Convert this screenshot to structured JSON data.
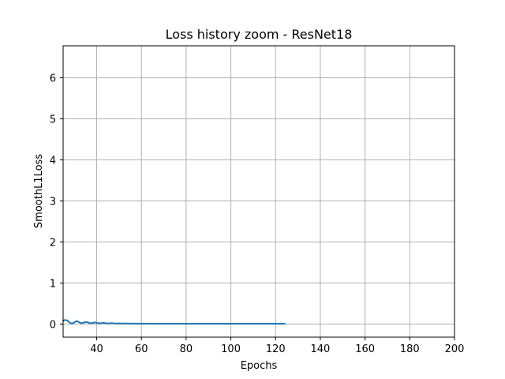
{
  "chart_data": {
    "type": "line",
    "title": "Loss history zoom - ResNet18",
    "xlabel": "Epochs",
    "ylabel": "SmoothL1Loss",
    "xlim": [
      25,
      200
    ],
    "ylim": [
      -0.32,
      6.78
    ],
    "xticks": [
      40,
      60,
      80,
      100,
      120,
      140,
      160,
      180,
      200
    ],
    "yticks": [
      0,
      1,
      2,
      3,
      4,
      5,
      6
    ],
    "grid": true,
    "legend": "none",
    "color": "#1f77b4",
    "series": [
      {
        "x": [
          25,
          26,
          27,
          28,
          29,
          30,
          31,
          32,
          33,
          34,
          35,
          36,
          37,
          38,
          39,
          40,
          41,
          42,
          43,
          44,
          45,
          46,
          47,
          48,
          49,
          50,
          52,
          54,
          56,
          58,
          60,
          65,
          70,
          75,
          80,
          90,
          100,
          110,
          120,
          124
        ],
        "y": [
          0.08,
          0.1,
          0.08,
          0.03,
          0.01,
          0.04,
          0.07,
          0.05,
          0.02,
          0.03,
          0.05,
          0.04,
          0.02,
          0.02,
          0.04,
          0.03,
          0.02,
          0.02,
          0.03,
          0.02,
          0.015,
          0.02,
          0.02,
          0.015,
          0.012,
          0.015,
          0.012,
          0.012,
          0.01,
          0.01,
          0.01,
          0.008,
          0.008,
          0.007,
          0.007,
          0.007,
          0.006,
          0.006,
          0.006,
          0.006
        ]
      }
    ]
  }
}
